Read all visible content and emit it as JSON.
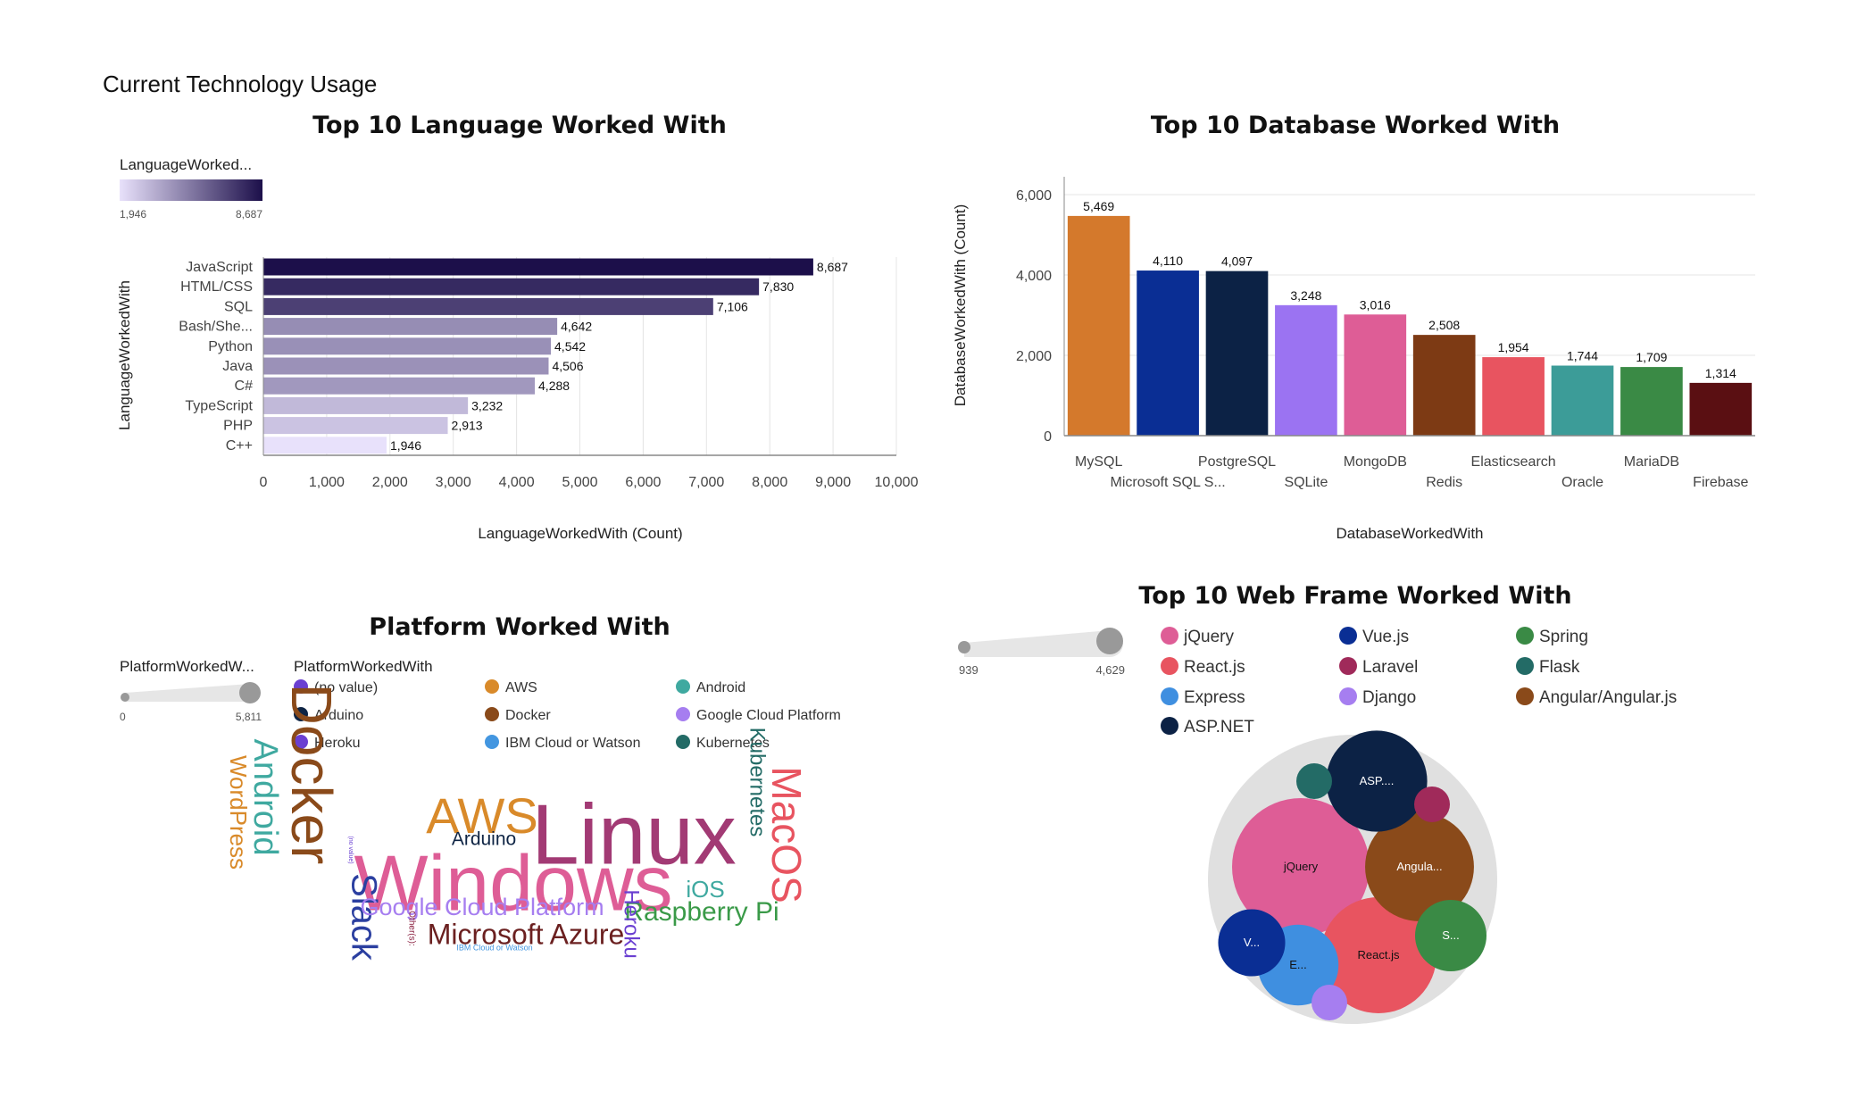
{
  "page": {
    "title": "Current Technology Usage"
  },
  "chart_data": [
    {
      "id": "languages",
      "type": "bar",
      "orientation": "horizontal",
      "title": "Top 10 Language Worked With",
      "xlabel": "LanguageWorkedWith (Count)",
      "ylabel": "LanguageWorkedWith",
      "categories": [
        "JavaScript",
        "HTML/CSS",
        "SQL",
        "Bash/She...",
        "Python",
        "Java",
        "C#",
        "TypeScript",
        "PHP",
        "C++"
      ],
      "values": [
        8687,
        7830,
        7106,
        4642,
        4542,
        4506,
        4288,
        3232,
        2913,
        1946
      ],
      "value_labels": [
        "8,687",
        "7,830",
        "7,106",
        "4,642",
        "4,542",
        "4,506",
        "4,288",
        "3,232",
        "2,913",
        "1,946"
      ],
      "xlim": [
        0,
        10000
      ],
      "xticks": [
        "0",
        "1,000",
        "2,000",
        "3,000",
        "4,000",
        "5,000",
        "6,000",
        "7,000",
        "8,000",
        "9,000",
        "10,000"
      ],
      "legend": {
        "title": "LanguageWorked...",
        "min_label": "1,946",
        "max_label": "8,687",
        "min": 1946,
        "max": 8687,
        "color_low": "#e8e1fb",
        "color_high": "#1c0f4a",
        "placement": "top-left"
      },
      "grid": true
    },
    {
      "id": "databases",
      "type": "bar",
      "title": "Top 10 Database Worked With",
      "xlabel": "DatabaseWorkedWith",
      "ylabel": "DatabaseWorkedWith (Count)",
      "categories": [
        "MySQL",
        "Microsoft SQL S...",
        "PostgreSQL",
        "SQLite",
        "MongoDB",
        "Redis",
        "Elasticsearch",
        "Oracle",
        "MariaDB",
        "Firebase"
      ],
      "values": [
        5469,
        4110,
        4097,
        3248,
        3016,
        2508,
        1954,
        1744,
        1709,
        1314
      ],
      "value_labels": [
        "5,469",
        "4,110",
        "4,097",
        "3,248",
        "3,016",
        "2,508",
        "1,954",
        "1,744",
        "1,709",
        "1,314"
      ],
      "colors": [
        "#d4792c",
        "#0a2e94",
        "#0c2245",
        "#9b73f2",
        "#de5d96",
        "#7d3a14",
        "#e85460",
        "#3c9c98",
        "#3a8a45",
        "#5a0f12"
      ],
      "ylim": [
        0,
        6000
      ],
      "yticks": [
        "0",
        "2,000",
        "4,000",
        "6,000"
      ],
      "grid": true
    },
    {
      "id": "platforms",
      "type": "wordcloud",
      "title": "Platform Worked With",
      "size_legend": {
        "title": "PlatformWorkedW...",
        "min_label": "0",
        "max_label": "5,811"
      },
      "color_legend": {
        "title": "PlatformWorkedWith",
        "items": [
          {
            "label": "(no value)",
            "color": "#6a3fd1"
          },
          {
            "label": "AWS",
            "color": "#d98a2a"
          },
          {
            "label": "Android",
            "color": "#3fa9a0"
          },
          {
            "label": "Arduino",
            "color": "#0e2444"
          },
          {
            "label": "Docker",
            "color": "#8a4a1a"
          },
          {
            "label": "Google Cloud Platform",
            "color": "#a67ef0"
          },
          {
            "label": "Heroku",
            "color": "#6a3fd1"
          },
          {
            "label": "IBM Cloud or Watson",
            "color": "#4396e0"
          },
          {
            "label": "Kubernetes",
            "color": "#236b66"
          }
        ]
      },
      "words": [
        {
          "text": "Linux",
          "color": "#a23a74"
        },
        {
          "text": "Windows",
          "color": "#de5d96"
        },
        {
          "text": "AWS",
          "color": "#d98a2a"
        },
        {
          "text": "Docker",
          "color": "#8a4a1a"
        },
        {
          "text": "Android",
          "color": "#3fa9a0"
        },
        {
          "text": "WordPress",
          "color": "#d98a2a"
        },
        {
          "text": "Slack",
          "color": "#2b3fa0"
        },
        {
          "text": "MacOS",
          "color": "#e85460"
        },
        {
          "text": "Kubernetes",
          "color": "#236b66"
        },
        {
          "text": "Raspberry Pi",
          "color": "#3a9a48"
        },
        {
          "text": "iOS",
          "color": "#3fa9a0"
        },
        {
          "text": "Microsoft Azure",
          "color": "#6b2020"
        },
        {
          "text": "Google Cloud Platform",
          "color": "#a67ef0"
        },
        {
          "text": "Arduino",
          "color": "#0e2444"
        },
        {
          "text": "Heroku",
          "color": "#6a3fd1"
        },
        {
          "text": "IBM Cloud or Watson",
          "color": "#4396e0"
        },
        {
          "text": "Other(s):",
          "color": "#8a2040"
        },
        {
          "text": "(no value)",
          "color": "#6a3fd1"
        }
      ]
    },
    {
      "id": "webframes",
      "type": "bubble",
      "title": "Top 10 Web Frame Worked With",
      "size_legend": {
        "min_label": "939",
        "max_label": "4,629"
      },
      "legend": [
        {
          "label": "jQuery",
          "color": "#de5d96"
        },
        {
          "label": "Vue.js",
          "color": "#0a2e94"
        },
        {
          "label": "Spring",
          "color": "#3a8a45"
        },
        {
          "label": "React.js",
          "color": "#e85460"
        },
        {
          "label": "Laravel",
          "color": "#a02a5a"
        },
        {
          "label": "Flask",
          "color": "#236b66"
        },
        {
          "label": "Express",
          "color": "#3f8fe0"
        },
        {
          "label": "Django",
          "color": "#a67ef0"
        },
        {
          "label": "Angular/Angular.js",
          "color": "#8a4a1a"
        },
        {
          "label": "ASP.NET",
          "color": "#0c2245"
        }
      ],
      "bubbles": [
        {
          "name": "jQuery",
          "label": "jQuery",
          "value": 4629,
          "color": "#de5d96"
        },
        {
          "name": "React.js",
          "label": "React.js",
          "value": 3300,
          "color": "#e85460"
        },
        {
          "name": "Angular/Angular.js",
          "label": "Angula...",
          "value": 2900,
          "color": "#8a4a1a"
        },
        {
          "name": "ASP.NET",
          "label": "ASP....",
          "value": 2500,
          "color": "#0c2245"
        },
        {
          "name": "Spring",
          "label": "S...",
          "value": 1250,
          "color": "#3a8a45"
        },
        {
          "name": "Express",
          "label": "E...",
          "value": 1600,
          "color": "#3f8fe0"
        },
        {
          "name": "Vue.js",
          "label": "V...",
          "value": 1100,
          "color": "#0a2e94"
        },
        {
          "name": "Flask",
          "label": "",
          "value": 939,
          "color": "#236b66"
        },
        {
          "name": "Laravel",
          "label": "",
          "value": 939,
          "color": "#a02a5a"
        },
        {
          "name": "Django",
          "label": "",
          "value": 939,
          "color": "#a67ef0"
        }
      ]
    }
  ]
}
